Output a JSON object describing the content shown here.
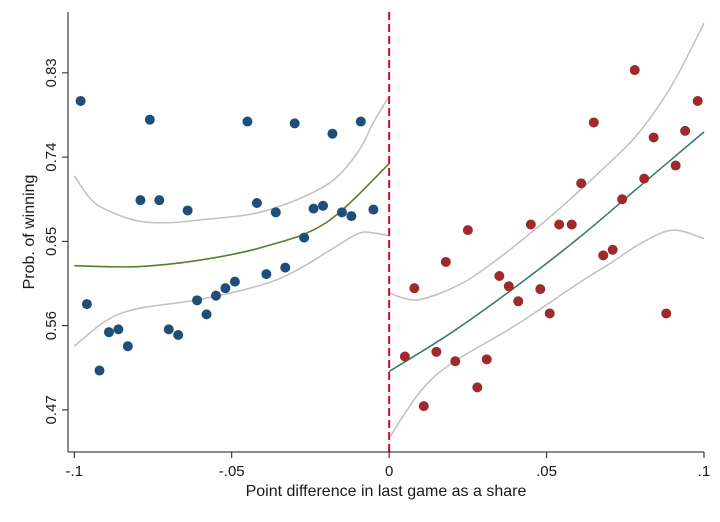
{
  "chart_data": {
    "type": "scatter",
    "title": "",
    "xlabel": "Point difference in last game as a share",
    "ylabel": "Prob. of winning",
    "xlim": [
      -0.102,
      0.1
    ],
    "ylim": [
      0.425,
      0.895
    ],
    "x_ticks": [
      {
        "value": -0.1,
        "label": "-.1"
      },
      {
        "value": -0.05,
        "label": "-.05"
      },
      {
        "value": 0,
        "label": "0"
      },
      {
        "value": 0.05,
        "label": ".05"
      },
      {
        "value": 0.1,
        "label": ".1"
      }
    ],
    "y_ticks": [
      {
        "value": 0.47,
        "label": "0.47"
      },
      {
        "value": 0.56,
        "label": "0.56"
      },
      {
        "value": 0.65,
        "label": "0.65"
      },
      {
        "value": 0.74,
        "label": "0.74"
      },
      {
        "value": 0.83,
        "label": "0.83"
      }
    ],
    "cutoff": {
      "x": 0,
      "color": "#c8102e",
      "style": "dashed"
    },
    "grid": false,
    "series": [
      {
        "side": "left",
        "color": "#1f4e79",
        "points": [
          [
            -0.098,
            0.8
          ],
          [
            -0.096,
            0.583
          ],
          [
            -0.092,
            0.512
          ],
          [
            -0.089,
            0.553
          ],
          [
            -0.086,
            0.556
          ],
          [
            -0.083,
            0.538
          ],
          [
            -0.079,
            0.694
          ],
          [
            -0.076,
            0.78
          ],
          [
            -0.073,
            0.694
          ],
          [
            -0.07,
            0.556
          ],
          [
            -0.067,
            0.55
          ],
          [
            -0.064,
            0.683
          ],
          [
            -0.061,
            0.587
          ],
          [
            -0.058,
            0.572
          ],
          [
            -0.055,
            0.592
          ],
          [
            -0.052,
            0.6
          ],
          [
            -0.049,
            0.607
          ],
          [
            -0.045,
            0.778
          ],
          [
            -0.042,
            0.691
          ],
          [
            -0.039,
            0.615
          ],
          [
            -0.036,
            0.681
          ],
          [
            -0.033,
            0.622
          ],
          [
            -0.03,
            0.776
          ],
          [
            -0.027,
            0.654
          ],
          [
            -0.024,
            0.685
          ],
          [
            -0.021,
            0.688
          ],
          [
            -0.018,
            0.765
          ],
          [
            -0.015,
            0.681
          ],
          [
            -0.012,
            0.677
          ],
          [
            -0.009,
            0.778
          ],
          [
            -0.005,
            0.684
          ]
        ]
      },
      {
        "side": "right",
        "color": "#9e2a2b",
        "points": [
          [
            0.005,
            0.527
          ],
          [
            0.008,
            0.6
          ],
          [
            0.011,
            0.474
          ],
          [
            0.015,
            0.532
          ],
          [
            0.018,
            0.628
          ],
          [
            0.021,
            0.522
          ],
          [
            0.025,
            0.662
          ],
          [
            0.028,
            0.494
          ],
          [
            0.031,
            0.524
          ],
          [
            0.035,
            0.613
          ],
          [
            0.038,
            0.602
          ],
          [
            0.041,
            0.586
          ],
          [
            0.045,
            0.668
          ],
          [
            0.048,
            0.599
          ],
          [
            0.051,
            0.573
          ],
          [
            0.054,
            0.668
          ],
          [
            0.058,
            0.668
          ],
          [
            0.061,
            0.712
          ],
          [
            0.065,
            0.777
          ],
          [
            0.068,
            0.635
          ],
          [
            0.071,
            0.641
          ],
          [
            0.074,
            0.695
          ],
          [
            0.078,
            0.833
          ],
          [
            0.081,
            0.717
          ],
          [
            0.084,
            0.761
          ],
          [
            0.088,
            0.573
          ],
          [
            0.091,
            0.731
          ],
          [
            0.094,
            0.768
          ],
          [
            0.098,
            0.8
          ]
        ]
      }
    ],
    "fit_lines": [
      {
        "side": "left",
        "role": "fit",
        "color": "#5a7d2a",
        "points": [
          [
            -0.1,
            0.624
          ],
          [
            -0.08,
            0.623
          ],
          [
            -0.06,
            0.63
          ],
          [
            -0.04,
            0.644
          ],
          [
            -0.02,
            0.67
          ],
          [
            0,
            0.733
          ]
        ]
      },
      {
        "side": "left",
        "role": "ci-upper",
        "color": "#c0c0c0",
        "points": [
          [
            -0.1,
            0.72
          ],
          [
            -0.095,
            0.696
          ],
          [
            -0.09,
            0.684
          ],
          [
            -0.08,
            0.672
          ],
          [
            -0.07,
            0.67
          ],
          [
            -0.06,
            0.673
          ],
          [
            -0.04,
            0.682
          ],
          [
            -0.02,
            0.71
          ],
          [
            -0.01,
            0.745
          ],
          [
            -0.005,
            0.777
          ],
          [
            0,
            0.805
          ]
        ]
      },
      {
        "side": "left",
        "role": "ci-lower",
        "color": "#c0c0c0",
        "points": [
          [
            -0.1,
            0.538
          ],
          [
            -0.09,
            0.565
          ],
          [
            -0.08,
            0.578
          ],
          [
            -0.06,
            0.588
          ],
          [
            -0.04,
            0.604
          ],
          [
            -0.03,
            0.618
          ],
          [
            -0.02,
            0.638
          ],
          [
            -0.01,
            0.658
          ],
          [
            -0.005,
            0.659
          ],
          [
            0,
            0.656
          ]
        ]
      },
      {
        "side": "right",
        "role": "fit",
        "color": "#3d7a6e",
        "points": [
          [
            0,
            0.511
          ],
          [
            0.02,
            0.553
          ],
          [
            0.04,
            0.601
          ],
          [
            0.06,
            0.653
          ],
          [
            0.08,
            0.71
          ],
          [
            0.1,
            0.767
          ]
        ]
      },
      {
        "side": "right",
        "role": "ci-upper",
        "color": "#c0c0c0",
        "points": [
          [
            0,
            0.595
          ],
          [
            0.005,
            0.589
          ],
          [
            0.01,
            0.588
          ],
          [
            0.02,
            0.6
          ],
          [
            0.03,
            0.62
          ],
          [
            0.05,
            0.673
          ],
          [
            0.07,
            0.734
          ],
          [
            0.08,
            0.769
          ],
          [
            0.09,
            0.818
          ],
          [
            0.1,
            0.883
          ]
        ]
      },
      {
        "side": "right",
        "role": "ci-lower",
        "color": "#c0c0c0",
        "points": [
          [
            0,
            0.44
          ],
          [
            0.01,
            0.49
          ],
          [
            0.02,
            0.52
          ],
          [
            0.04,
            0.56
          ],
          [
            0.06,
            0.605
          ],
          [
            0.07,
            0.626
          ],
          [
            0.08,
            0.648
          ],
          [
            0.09,
            0.662
          ],
          [
            0.1,
            0.653
          ]
        ]
      }
    ]
  }
}
